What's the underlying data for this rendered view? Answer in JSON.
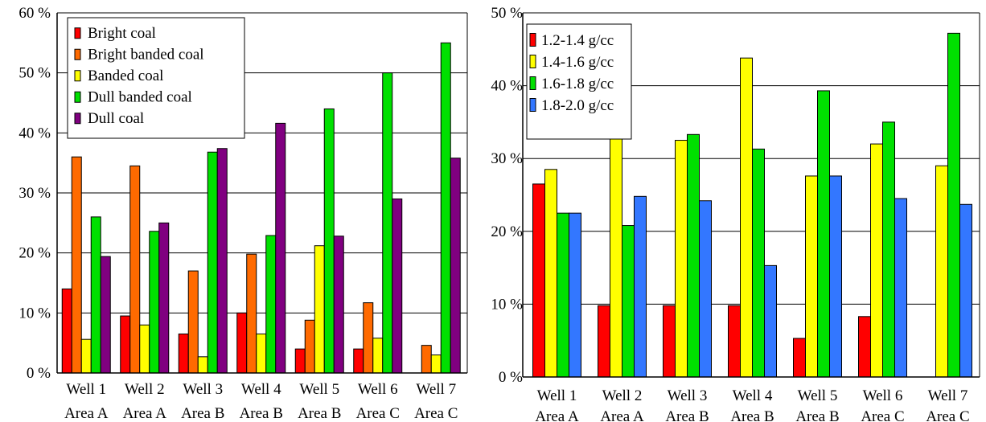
{
  "chart_data": [
    {
      "type": "bar",
      "title": "",
      "xlabel": "",
      "ylabel": "",
      "ylim": [
        0,
        60
      ],
      "yticks": [
        "0 %",
        "10 %",
        "20 %",
        "30 %",
        "40 %",
        "50 %",
        "60 %"
      ],
      "categories": [
        {
          "well": "Well 1",
          "area": "Area A"
        },
        {
          "well": "Well 2",
          "area": "Area A"
        },
        {
          "well": "Well 3",
          "area": "Area B"
        },
        {
          "well": "Well 4",
          "area": "Area B"
        },
        {
          "well": "Well 5",
          "area": "Area B"
        },
        {
          "well": "Well 6",
          "area": "Area C"
        },
        {
          "well": "Well 7",
          "area": "Area C"
        }
      ],
      "grid": true,
      "legend_position": "top-left",
      "series": [
        {
          "name": "Bright coal",
          "color": "#ff0000",
          "values": [
            14,
            9.5,
            6.5,
            10,
            4,
            4,
            0
          ]
        },
        {
          "name": "Bright banded coal",
          "color": "#ff6a00",
          "values": [
            36,
            34.5,
            17,
            19.8,
            8.8,
            11.7,
            4.6
          ]
        },
        {
          "name": "Banded coal",
          "color": "#ffff00",
          "values": [
            5.6,
            8,
            2.7,
            6.5,
            21.2,
            5.8,
            3
          ]
        },
        {
          "name": "Dull banded coal",
          "color": "#00e000",
          "values": [
            26,
            23.6,
            36.8,
            22.9,
            44,
            50,
            55
          ]
        },
        {
          "name": "Dull coal",
          "color": "#800080",
          "values": [
            19.4,
            25,
            37.4,
            41.6,
            22.8,
            29,
            35.8
          ]
        }
      ]
    },
    {
      "type": "bar",
      "title": "",
      "xlabel": "",
      "ylabel": "",
      "ylim": [
        0,
        50
      ],
      "yticks": [
        "0 %",
        "10 %",
        "20 %",
        "30 %",
        "40 %",
        "50 %"
      ],
      "categories": [
        {
          "well": "Well 1",
          "area": "Area A"
        },
        {
          "well": "Well 2",
          "area": "Area A"
        },
        {
          "well": "Well 3",
          "area": "Area B"
        },
        {
          "well": "Well 4",
          "area": "Area B"
        },
        {
          "well": "Well 5",
          "area": "Area B"
        },
        {
          "well": "Well 6",
          "area": "Area C"
        },
        {
          "well": "Well 7",
          "area": "Area C"
        }
      ],
      "grid": true,
      "legend_position": "top-left",
      "series": [
        {
          "name": "1.2-1.4 g/cc",
          "color": "#ff0000",
          "values": [
            26.5,
            9.8,
            9.8,
            9.8,
            5.3,
            8.3,
            0
          ]
        },
        {
          "name": "1.4-1.6 g/cc",
          "color": "#ffff00",
          "values": [
            28.5,
            33,
            32.5,
            43.8,
            27.6,
            32,
            29
          ]
        },
        {
          "name": "1.6-1.8 g/cc",
          "color": "#00e000",
          "values": [
            22.5,
            20.8,
            33.3,
            31.3,
            39.3,
            35,
            47.2
          ]
        },
        {
          "name": "1.8-2.0 g/cc",
          "color": "#3377ff",
          "values": [
            22.5,
            24.8,
            24.2,
            15.3,
            27.6,
            24.5,
            23.7
          ]
        }
      ]
    }
  ]
}
